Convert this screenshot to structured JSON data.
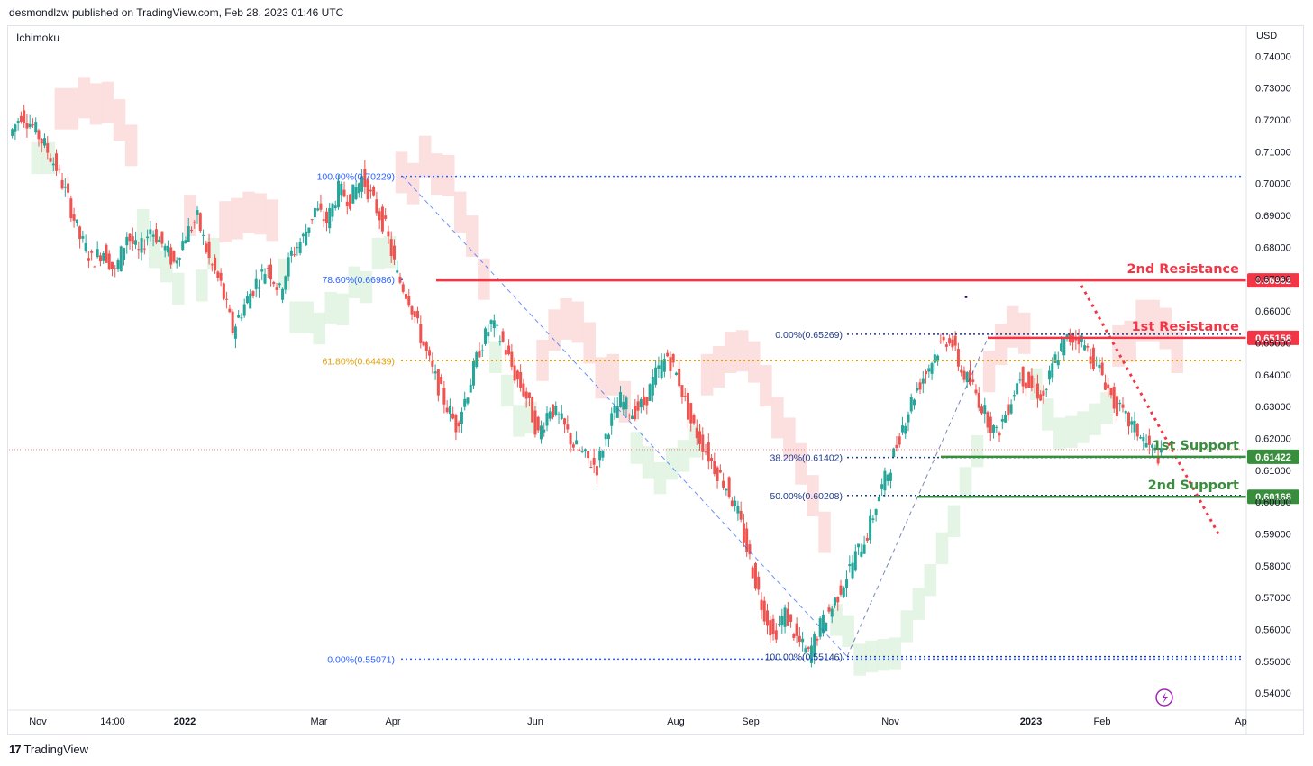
{
  "header": {
    "attribution": "desmondlzw published on TradingView.com, Feb 28, 2023 01:46 UTC"
  },
  "indicator": {
    "name": "Ichimoku"
  },
  "axis": {
    "currency": "USD"
  },
  "footer": {
    "brand": "TradingView",
    "logo_text": "17"
  },
  "chart_data": {
    "type": "candlestick",
    "y_axis": {
      "range": [
        0.5375,
        0.7435
      ],
      "ticks": [
        "0.74000",
        "0.73000",
        "0.72000",
        "0.71000",
        "0.70000",
        "0.69000",
        "0.68000",
        "0.67000",
        "0.66000",
        "0.65000",
        "0.64000",
        "0.63000",
        "0.62000",
        "0.61000",
        "0.60000",
        "0.59000",
        "0.58000",
        "0.57000",
        "0.56000",
        "0.55000",
        "0.54000"
      ]
    },
    "x_axis": {
      "ticks": [
        {
          "label": "Nov",
          "bold": false
        },
        {
          "label": "14:00",
          "bold": false
        },
        {
          "label": "2022",
          "bold": true
        },
        {
          "label": "Mar",
          "bold": false
        },
        {
          "label": "Apr",
          "bold": false
        },
        {
          "label": "Jun",
          "bold": false
        },
        {
          "label": "Aug",
          "bold": false
        },
        {
          "label": "Sep",
          "bold": false
        },
        {
          "label": "Nov",
          "bold": false
        },
        {
          "label": "2023",
          "bold": true
        },
        {
          "label": "Feb",
          "bold": false
        },
        {
          "label": "Ap",
          "bold": false
        }
      ]
    },
    "price_path": [
      0.715,
      0.722,
      0.718,
      0.712,
      0.705,
      0.695,
      0.683,
      0.676,
      0.679,
      0.672,
      0.684,
      0.678,
      0.686,
      0.681,
      0.675,
      0.684,
      0.689,
      0.676,
      0.668,
      0.654,
      0.662,
      0.669,
      0.674,
      0.666,
      0.678,
      0.683,
      0.692,
      0.688,
      0.698,
      0.695,
      0.702,
      0.694,
      0.686,
      0.671,
      0.664,
      0.652,
      0.641,
      0.632,
      0.624,
      0.635,
      0.648,
      0.656,
      0.65,
      0.64,
      0.633,
      0.621,
      0.63,
      0.625,
      0.618,
      0.614,
      0.611,
      0.624,
      0.632,
      0.628,
      0.631,
      0.64,
      0.646,
      0.638,
      0.625,
      0.618,
      0.611,
      0.605,
      0.596,
      0.582,
      0.568,
      0.558,
      0.565,
      0.557,
      0.552,
      0.561,
      0.567,
      0.575,
      0.583,
      0.59,
      0.602,
      0.612,
      0.624,
      0.634,
      0.641,
      0.648,
      0.652,
      0.641,
      0.636,
      0.628,
      0.621,
      0.63,
      0.64,
      0.636,
      0.633,
      0.645,
      0.651,
      0.652,
      0.646,
      0.64,
      0.631,
      0.626,
      0.622,
      0.617,
      0.614
    ],
    "fibonacci_left": [
      {
        "label": "100.00%(0.70229)",
        "value": 0.70229,
        "color": "#2962ff"
      },
      {
        "label": "78.60%(0.66986)",
        "value": 0.66986,
        "color": "#2962ff"
      },
      {
        "label": "61.80%(0.64439)",
        "value": 0.64439,
        "color": "#e3a008"
      },
      {
        "label": "0.00%(0.55071)",
        "value": 0.55071,
        "color": "#2962ff"
      }
    ],
    "fibonacci_right": [
      {
        "label": "0.00%(0.65269)",
        "value": 0.65269,
        "color": "#1e3a8a"
      },
      {
        "label": "38.20%(0.61402)",
        "value": 0.61402,
        "color": "#1e3a8a"
      },
      {
        "label": "50.00%(0.60208)",
        "value": 0.60208,
        "color": "#1e3a8a"
      },
      {
        "label": "100.00%(0.55146)",
        "value": 0.55146,
        "color": "#1e3a8a"
      }
    ],
    "levels": [
      {
        "name": "2nd Resistance",
        "value": 0.66962,
        "badge": "0.66962",
        "color": "#f23645"
      },
      {
        "name": "1st Resistance",
        "value": 0.65158,
        "badge": "0.65158",
        "color": "#f23645"
      },
      {
        "name": "1st Support",
        "value": 0.61422,
        "badge": "0.61422",
        "color": "#388e3c"
      },
      {
        "name": "2nd Support",
        "value": 0.60168,
        "badge": "0.60168",
        "color": "#388e3c"
      }
    ],
    "current_price_value": 0.6165,
    "trendline_start": 0.668,
    "trendline_end": 0.59,
    "colors": {
      "up": "#26a69a",
      "down": "#ef5350",
      "cloud_bear": "#fbdada",
      "cloud_bull": "#dff2e1"
    }
  }
}
